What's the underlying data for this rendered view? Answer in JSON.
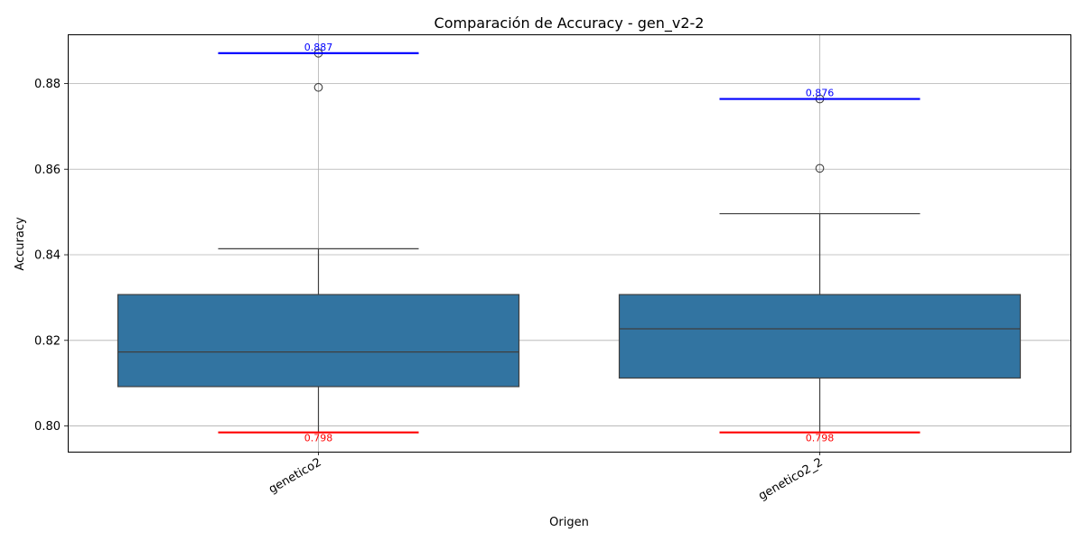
{
  "chart_data": {
    "type": "box",
    "title": "Comparación de Accuracy - gen_v2-2",
    "xlabel": "Origen",
    "ylabel": "Accuracy",
    "ylim": [
      0.794,
      0.8915
    ],
    "yticks": [
      0.8,
      0.82,
      0.84,
      0.86,
      0.88
    ],
    "ytick_labels": [
      "0.80",
      "0.82",
      "0.84",
      "0.86",
      "0.88"
    ],
    "grid": true,
    "box_color": "#3274a1",
    "line_color": "#3f3f3f",
    "max_color": "#0000ff",
    "min_color": "#ff0000",
    "categories": [
      "genetico2",
      "genetico2_2"
    ],
    "boxes": [
      {
        "category": "genetico2",
        "whisker_low": 0.7985,
        "q1": 0.8092,
        "median": 0.8173,
        "q3": 0.8307,
        "whisker_high": 0.8414,
        "outliers": [
          0.8791,
          0.8871
        ],
        "max_line": 0.8871,
        "min_line": 0.7985,
        "max_label": "0.887",
        "min_label": "0.798"
      },
      {
        "category": "genetico2_2",
        "whisker_low": 0.7985,
        "q1": 0.8112,
        "median": 0.8227,
        "q3": 0.8307,
        "whisker_high": 0.8496,
        "outliers": [
          0.8602,
          0.8764
        ],
        "max_line": 0.8764,
        "min_line": 0.7985,
        "max_label": "0.876",
        "min_label": "0.798"
      }
    ]
  }
}
